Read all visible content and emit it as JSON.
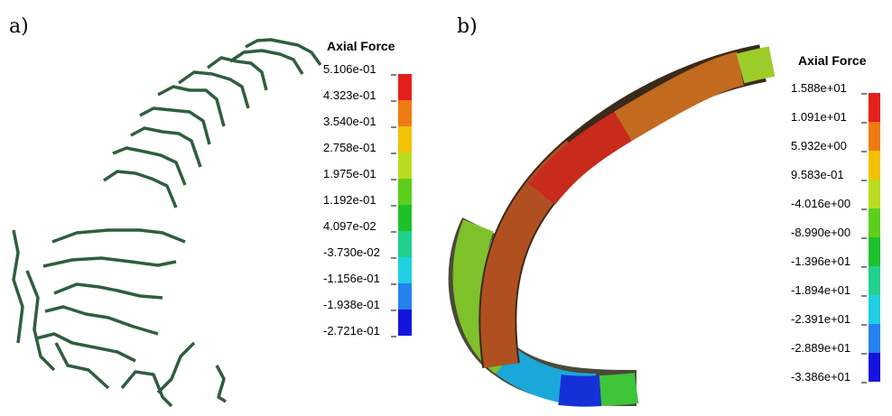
{
  "panels": [
    {
      "label": "a)",
      "legend": {
        "title": "Axial Force",
        "labels": [
          "5.106e-01",
          "4.323e-01",
          "3.540e-01",
          "2.758e-01",
          "1.975e-01",
          "1.192e-01",
          "4.097e-02",
          "-3.730e-02",
          "-1.156e-01",
          "-1.938e-01",
          "-2.721e-01"
        ],
        "band_colors": [
          "#e4201c",
          "#ef7a12",
          "#f2c100",
          "#b9dd1e",
          "#5ccf1c",
          "#1fc12a",
          "#22d08e",
          "#1fcfe2",
          "#2382f0",
          "#1414e0"
        ]
      }
    },
    {
      "label": "b)",
      "legend": {
        "title": "Axial Force",
        "labels": [
          "1.588e+01",
          "1.091e+01",
          "5.932e+00",
          "9.583e-01",
          "-4.016e+00",
          "-8.990e+00",
          "-1.396e+01",
          "-1.894e+01",
          "-2.391e+01",
          "-2.889e+01",
          "-3.386e+01"
        ],
        "band_colors": [
          "#e4201c",
          "#ef7a12",
          "#f2c100",
          "#b9dd1e",
          "#5ccf1c",
          "#1fc12a",
          "#22d08e",
          "#1fcfe2",
          "#2382f0",
          "#1414e0"
        ]
      }
    }
  ]
}
